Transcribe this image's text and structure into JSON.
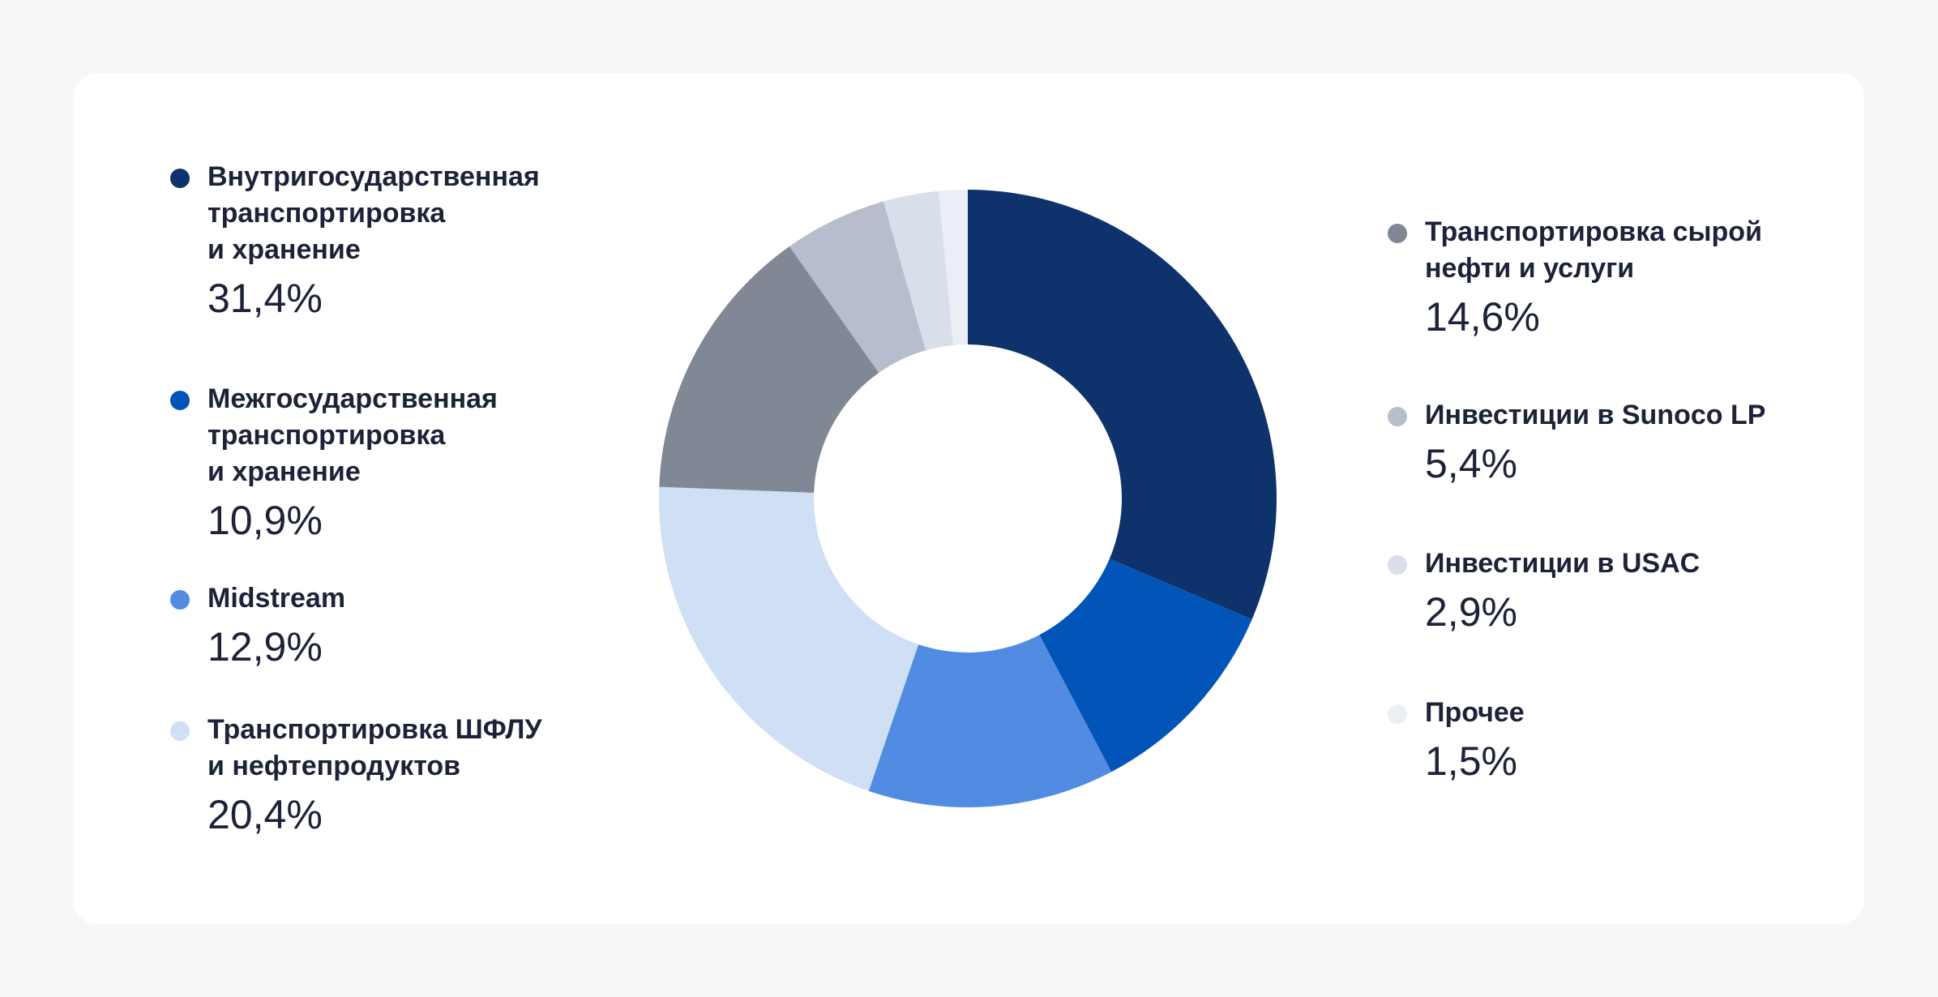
{
  "chart_data": {
    "type": "pie",
    "variant": "donut",
    "title": "",
    "legend_placement": "left-and-right",
    "series": [
      {
        "name": "",
        "slices": [
          {
            "label": "Внутригосударственная\nтранспортировка\nи хранение",
            "value": 31.4,
            "value_label": "31,4%",
            "color": "#0e326b"
          },
          {
            "label": "Межгосударственная\nтранспортировка\nи хранение",
            "value": 10.9,
            "value_label": "10,9%",
            "color": "#0155b8"
          },
          {
            "label": "Midstream",
            "value": 12.9,
            "value_label": "12,9%",
            "color": "#518ce2"
          },
          {
            "label": "Транспортировка ШФЛУ\nи нефтепродуктов",
            "value": 20.4,
            "value_label": "20,4%",
            "color": "#cfdff4"
          },
          {
            "label": "Транспортировка сырой\nнефти и услуги",
            "value": 14.6,
            "value_label": "14,6%",
            "color": "#7f8894"
          },
          {
            "label": "Инвестиции в Sunoco LP",
            "value": 5.4,
            "value_label": "5,4%",
            "color": "#b7bdcc"
          },
          {
            "label": "Инвестиции в USAC",
            "value": 2.9,
            "value_label": "2,9%",
            "color": "#d9dfea"
          },
          {
            "label": "Прочее",
            "value": 1.5,
            "value_label": "1,5%",
            "color": "#ebeff5"
          }
        ]
      }
    ]
  }
}
